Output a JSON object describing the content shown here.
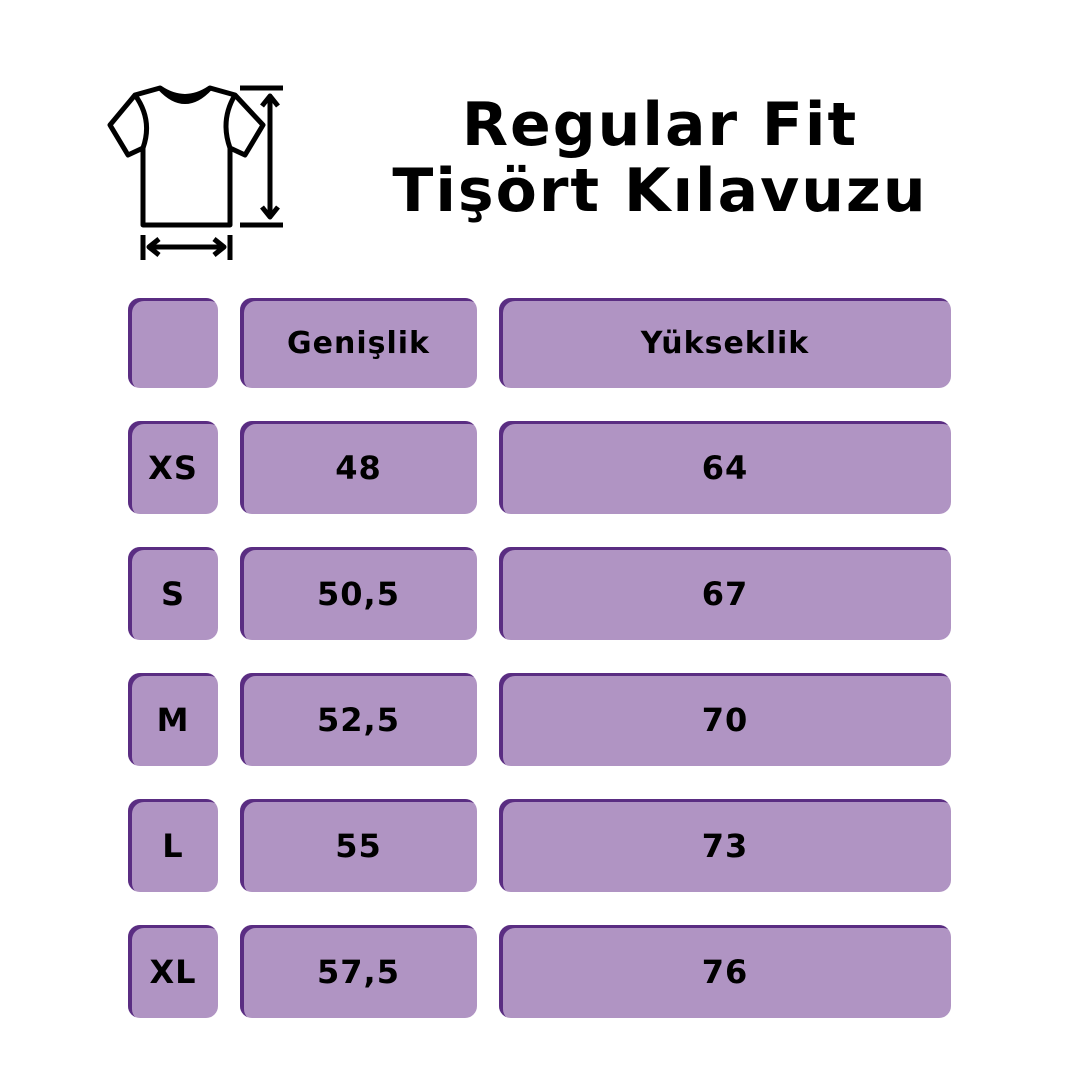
{
  "title": {
    "line1": "Regular Fit",
    "line2": "Tişört Kılavuzu"
  },
  "icon": "tshirt-measurement-icon",
  "colors": {
    "cell_fill": "#b094c3",
    "cell_edge": "#5a2d82"
  },
  "table": {
    "headers": [
      "",
      "Genişlik",
      "Yükseklik"
    ],
    "rows": [
      {
        "size": "XS",
        "width": "48",
        "height": "64"
      },
      {
        "size": "S",
        "width": "50,5",
        "height": "67"
      },
      {
        "size": "M",
        "width": "52,5",
        "height": "70"
      },
      {
        "size": "L",
        "width": "55",
        "height": "73"
      },
      {
        "size": "XL",
        "width": "57,5",
        "height": "76"
      }
    ]
  }
}
